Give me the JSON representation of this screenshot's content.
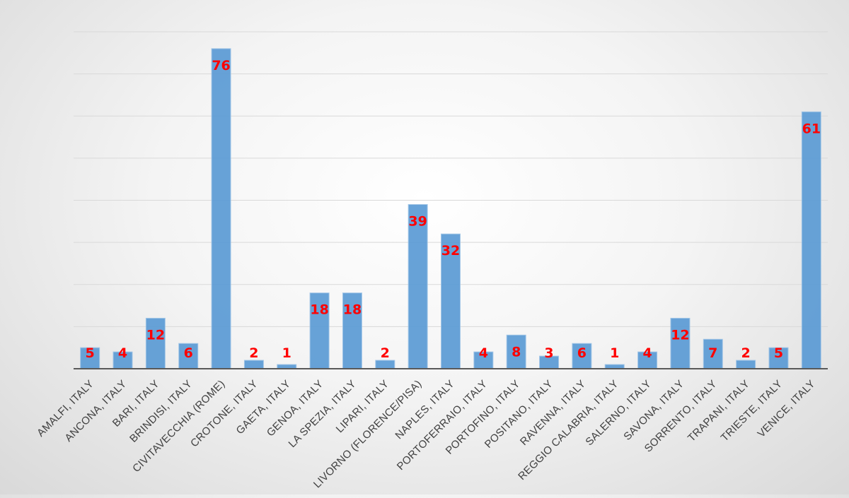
{
  "chart_data": {
    "type": "bar",
    "title": "",
    "xlabel": "",
    "ylabel": "",
    "ylim": [
      0,
      80
    ],
    "y_gridline_step": 10,
    "grid": true,
    "legend": "none",
    "bar_color": "#5b9bd5",
    "label_color": "#ff0000",
    "categories": [
      "AMALFI, ITALY",
      "ANCONA, ITALY",
      "BARI, ITALY",
      "BRINDISI, ITALY",
      "CIVITAVECCHIA (ROME)",
      "CROTONE, ITALY",
      "GAETA, ITALY",
      "GENOA, ITALY",
      "LA SPEZIA, ITALY",
      "LIPARI, ITALY",
      "LIVORNO (FLORENCE/PISA)",
      "NAPLES, ITALY",
      "PORTOFERRAIO, ITALY",
      "PORTOFINO, ITALY",
      "POSITANO, ITALY",
      "RAVENNA, ITALY",
      "REGGIO CALABRIA, ITALY",
      "SALERNO, ITALY",
      "SAVONA, ITALY",
      "SORRENTO, ITALY",
      "TRAPANI, ITALY",
      "TRIESTE, ITALY",
      "VENICE, ITALY"
    ],
    "values": [
      5,
      4,
      12,
      6,
      76,
      2,
      1,
      18,
      18,
      2,
      39,
      32,
      4,
      8,
      3,
      6,
      1,
      4,
      12,
      7,
      2,
      5,
      61
    ]
  }
}
